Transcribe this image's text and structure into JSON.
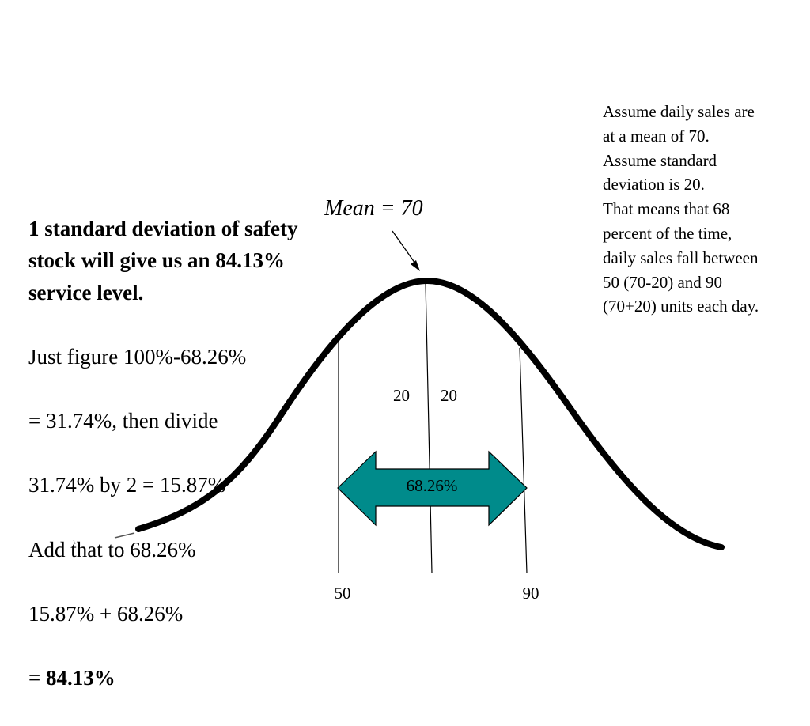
{
  "left_text": {
    "bold_line": "1 standard deviation of safety stock will give us an 84.13% service level.",
    "steps": [
      "Just figure 100%-68.26%",
      "= 31.74%, then divide",
      "31.74% by 2 = 15.87%",
      "Add that to 68.26%",
      "15.87% + 68.26%"
    ],
    "result_prefix": "= ",
    "result_value": "84.13%"
  },
  "right_text": "Assume daily sales are at a mean of 70.\nAssume standard deviation is 20.\nThat means that 68 percent of the time, daily sales fall between 50 (70-20) and 90 (70+20) units each day.",
  "diagram": {
    "mean_label": "Mean = 70",
    "left_sd_label": "20",
    "right_sd_label": "20",
    "range_label": "68.26%",
    "axis_left_label": "50",
    "axis_right_label": "90"
  },
  "colors": {
    "arrow_fill": "#008B8B",
    "curve": "#000000"
  }
}
